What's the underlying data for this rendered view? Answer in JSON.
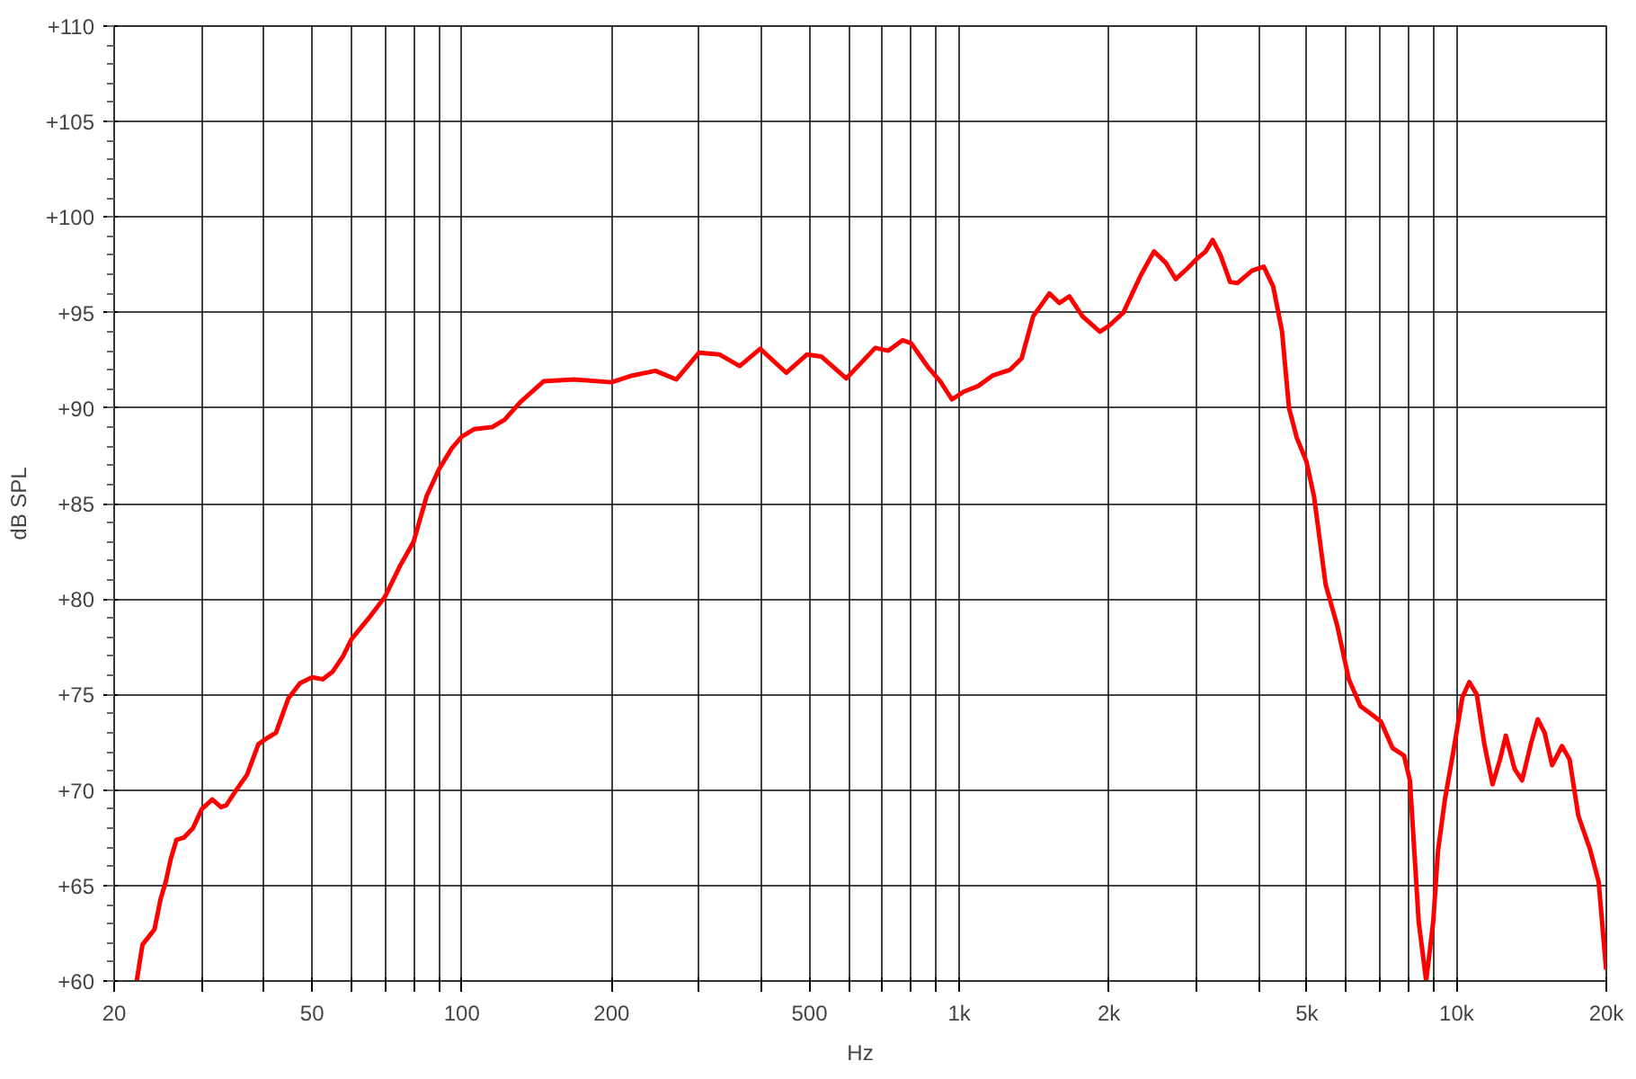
{
  "chart_data": {
    "type": "line",
    "xlabel": "Hz",
    "ylabel": "dB SPL",
    "log": "x",
    "grid": true,
    "marker": "none",
    "line_style": "solid",
    "xlim": [
      20,
      20000
    ],
    "ylim": [
      60,
      110
    ],
    "xticks": [
      20,
      {
        "value": 30,
        "label": null
      },
      {
        "value": 40,
        "label": null
      },
      50,
      {
        "value": 60,
        "label": null
      },
      {
        "value": 70,
        "label": null
      },
      {
        "value": 80,
        "label": null
      },
      {
        "value": 90,
        "label": null
      },
      100,
      200,
      {
        "value": 300,
        "label": null
      },
      {
        "value": 400,
        "label": null
      },
      500,
      {
        "value": 600,
        "label": null
      },
      {
        "value": 700,
        "label": null
      },
      {
        "value": 800,
        "label": null
      },
      {
        "value": 900,
        "label": null
      },
      {
        "value": 1000,
        "label": "1k"
      },
      {
        "value": 2000,
        "label": "2k"
      },
      {
        "value": 3000,
        "label": null
      },
      {
        "value": 4000,
        "label": null
      },
      {
        "value": 5000,
        "label": "5k"
      },
      {
        "value": 6000,
        "label": null
      },
      {
        "value": 7000,
        "label": null
      },
      {
        "value": 8000,
        "label": null
      },
      {
        "value": 9000,
        "label": null
      },
      {
        "value": 10000,
        "label": "10k"
      },
      {
        "value": 20000,
        "label": "20k"
      }
    ],
    "yticks": [
      {
        "value": 60,
        "label": "+60"
      },
      {
        "value": 65,
        "label": "+65"
      },
      {
        "value": 70,
        "label": "+70"
      },
      {
        "value": 75,
        "label": "+75"
      },
      {
        "value": 80,
        "label": "+80"
      },
      {
        "value": 85,
        "label": "+85"
      },
      {
        "value": 90,
        "label": "+90"
      },
      {
        "value": 95,
        "label": "+95"
      },
      {
        "value": 100,
        "label": "+100"
      },
      {
        "value": 105,
        "label": "+105"
      },
      {
        "value": 110,
        "label": "+110"
      }
    ],
    "series": [
      {
        "color": "#ff0000",
        "x": [
          22.2,
          22.8,
          24.1,
          24.8,
          25.4,
          26,
          26.7,
          27.6,
          28.8,
          30,
          31.5,
          32.8,
          33.6,
          35.2,
          37,
          39,
          40.5,
          42.3,
          44.8,
          47.3,
          50,
          52.5,
          55,
          57.7,
          60,
          65,
          70,
          75,
          80,
          85,
          90,
          95.5,
          100,
          106,
          115,
          122,
          131,
          146,
          168,
          200,
          220,
          245,
          270,
          300,
          330,
          362,
          398,
          449,
          494,
          528,
          593,
          678,
          720,
          769,
          800,
          868,
          916,
          967,
          1020,
          1091,
          1167,
          1265,
          1335,
          1408,
          1518,
          1590,
          1665,
          1770,
          1918,
          2000,
          2138,
          2317,
          2464,
          2603,
          2725,
          2873,
          3000,
          3130,
          3233,
          3347,
          3505,
          3628,
          3881,
          4096,
          4280,
          4457,
          4603,
          4771,
          4990,
          5170,
          5454,
          5755,
          6072,
          6407,
          7040,
          7431,
          7840,
          8057,
          8390,
          8686,
          8974,
          9173,
          9473,
          9863,
          10270,
          10605,
          10980,
          11370,
          11810,
          12224,
          12560,
          13080,
          13540,
          14100,
          14560,
          15030,
          15560,
          16290,
          16870,
          17570,
          18540,
          19300,
          19980
        ],
        "values": [
          60,
          61.9,
          62.7,
          64.3,
          65.2,
          66.4,
          67.4,
          67.5,
          68,
          69,
          69.5,
          69.1,
          69.2,
          70,
          70.8,
          72.4,
          72.7,
          73,
          74.8,
          75.6,
          75.9,
          75.8,
          76.2,
          77,
          77.9,
          79,
          80.1,
          81.7,
          83,
          85.4,
          86.8,
          87.9,
          88.5,
          88.9,
          89,
          89.4,
          90.3,
          91.4,
          91.5,
          91.35,
          91.7,
          91.95,
          91.5,
          92.9,
          92.8,
          92.2,
          93.1,
          91.85,
          92.8,
          92.7,
          91.55,
          93.15,
          93,
          93.55,
          93.4,
          92.1,
          91.4,
          90.45,
          90.85,
          91.15,
          91.7,
          92,
          92.6,
          94.8,
          96,
          95.5,
          95.85,
          94.8,
          94,
          94.3,
          95,
          96.95,
          98.2,
          97.6,
          96.75,
          97.3,
          97.8,
          98.2,
          98.8,
          98.05,
          96.6,
          96.55,
          97.2,
          97.4,
          96.35,
          94,
          90,
          88.45,
          87.2,
          85.35,
          80.75,
          78.6,
          75.8,
          74.4,
          73.6,
          72.2,
          71.8,
          70.5,
          63.1,
          60,
          63.1,
          66.8,
          69.5,
          72.1,
          74.85,
          75.65,
          75,
          72.4,
          70.3,
          71.6,
          72.85,
          71.1,
          70.5,
          72.4,
          73.7,
          73,
          71.3,
          72.3,
          71.6,
          68.65,
          66.9,
          65.2,
          60.6
        ]
      }
    ]
  }
}
